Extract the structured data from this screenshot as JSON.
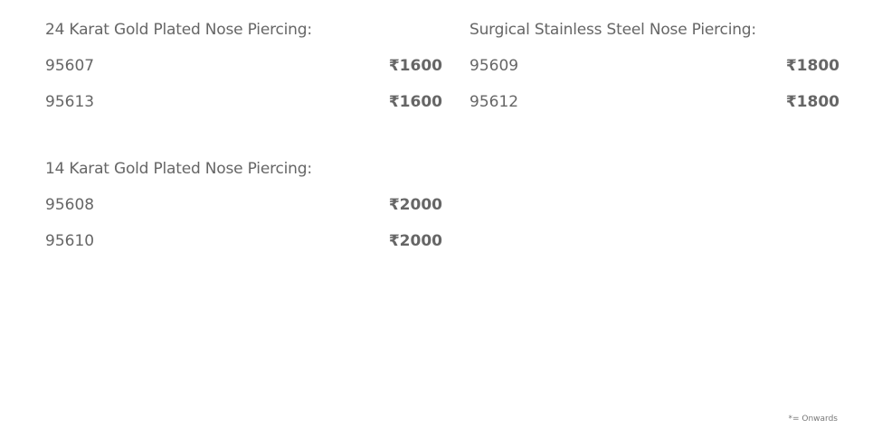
{
  "sections": [
    {
      "title": "24 Karat Gold Plated Nose Piercing:",
      "rows": [
        {
          "code": "95607",
          "price": "₹1600"
        },
        {
          "code": "95613",
          "price": "₹1600"
        }
      ]
    },
    {
      "title": "Surgical Stainless Steel Nose Piercing:",
      "rows": [
        {
          "code": "95609",
          "price": "₹1800"
        },
        {
          "code": "95612",
          "price": "₹1800"
        }
      ]
    },
    {
      "title": "14 Karat Gold Plated Nose Piercing:",
      "rows": [
        {
          "code": "95608",
          "price": "₹2000"
        },
        {
          "code": "95610",
          "price": "₹2000"
        }
      ]
    }
  ],
  "footnote": "*= Onwards"
}
